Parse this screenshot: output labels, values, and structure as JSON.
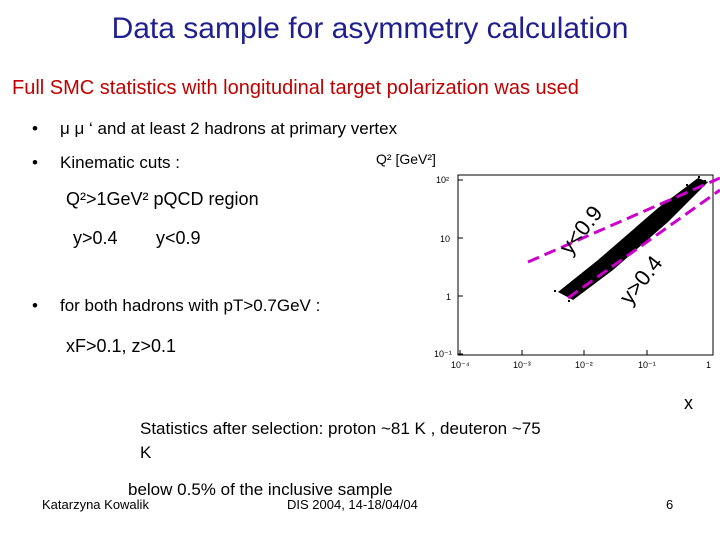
{
  "slide": {
    "title": "Data sample for asymmetry calculation",
    "subtitle": "Full SMC statistics with longitudinal target polarization  was used",
    "bullet1": "μ μ ‘ and at least 2 hadrons at primary vertex",
    "bullet2": "Kinematic cuts :",
    "q2_cut": "Q²>1GeV²  pQCD region",
    "y_cut_low": "y>0.4",
    "y_cut_high": "y<0.9",
    "bullet3": "for both  hadrons with pT>0.7GeV :",
    "xf_cut": "xF>0.1, z>0.1",
    "stats_line1": "Statistics after selection:  proton ~81 K , deuteron ~75",
    "stats_line2": "K",
    "stats_line3": "below 0.5% of the inclusive sample",
    "author": "Katarzyna Kowalik",
    "conference": "DIS 2004,  14-18/04/04",
    "page_number": "6"
  },
  "plot": {
    "ylabel": "Q² [GeV²]",
    "xlabel": "x",
    "label_y_high": "y<0.9",
    "label_y_low": "y>0.4",
    "y_ticks": [
      "10³",
      "10²",
      "10",
      "1",
      "10⁻¹"
    ],
    "x_ticks": [
      "10⁻⁴",
      "10⁻³",
      "10⁻²",
      "10⁻¹",
      "1"
    ],
    "cut_line_color": "#cc00cc",
    "band_color": "#000000"
  },
  "chart_data": {
    "type": "scatter",
    "xlabel": "x",
    "ylabel": "Q² [GeV²]",
    "x_scale": "log",
    "y_scale": "log",
    "xlim": [
      0.0001,
      1
    ],
    "ylim": [
      0.1,
      1000
    ],
    "grid": false,
    "cut_lines": [
      {
        "label": "y<0.9"
      },
      {
        "label": "y>0.4"
      }
    ]
  }
}
